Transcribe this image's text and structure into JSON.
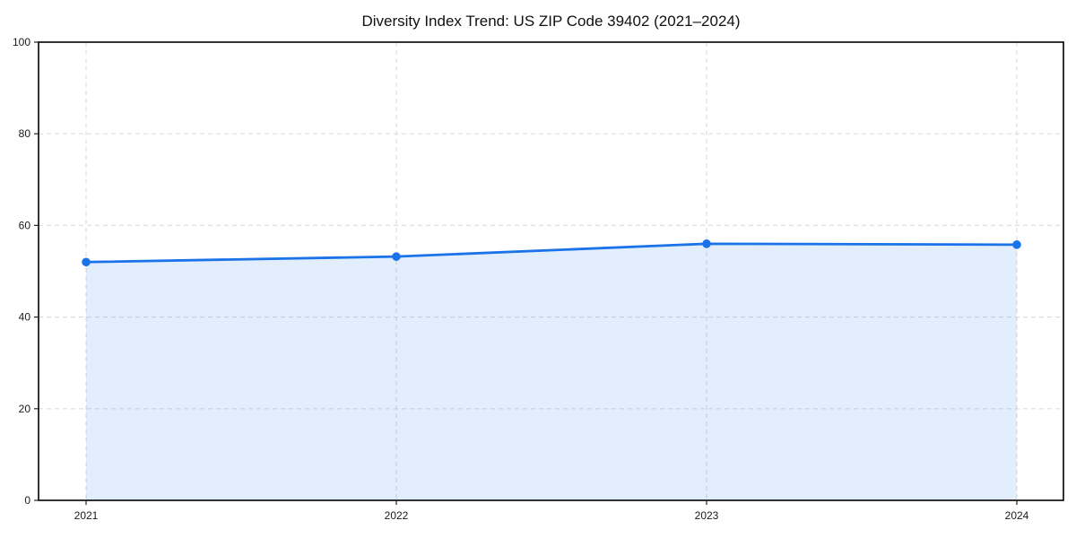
{
  "page": {
    "background": "#ffffff"
  },
  "chart_data": {
    "type": "line",
    "title": "Diversity Index Trend: US ZIP Code 39402 (2021–2024)",
    "categories": [
      "2021",
      "2022",
      "2023",
      "2024"
    ],
    "series": [
      {
        "name": "Diversity Index",
        "values": [
          52.0,
          53.2,
          56.0,
          55.8
        ]
      }
    ],
    "xlabel": "",
    "ylabel": "",
    "ylim": [
      0,
      100
    ],
    "yticks": [
      0,
      20,
      40,
      60,
      80,
      100
    ],
    "grid": true,
    "grid_style": "dashed",
    "legend_position": "none",
    "area_fill": true,
    "marker": "circle",
    "colors": {
      "line": "#1a73e8",
      "fill": "#1a73e8",
      "fill_opacity": 0.12,
      "grid": "#dedede",
      "spine": "#000000",
      "tick": "#222222",
      "text": "#1a1a1a",
      "title": "#111111",
      "background": "#ffffff"
    }
  }
}
